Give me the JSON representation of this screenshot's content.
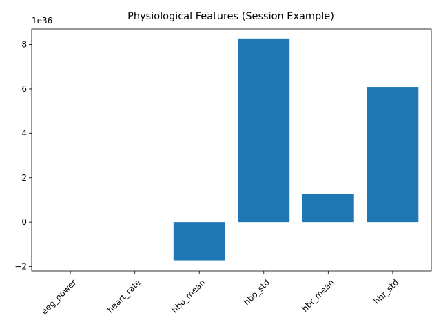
{
  "chart_data": {
    "type": "bar",
    "title": "Physiological Features (Session Example)",
    "xlabel": "",
    "ylabel": "",
    "offset_label": "1e36",
    "categories": [
      "eeg_power",
      "heart_rate",
      "hbo_mean",
      "hbo_std",
      "hbr_mean",
      "hbr_std"
    ],
    "values": [
      0.0,
      0.0,
      -1.72,
      8.27,
      1.27,
      6.09
    ],
    "value_scale": 1e+36,
    "ylim": [
      -2.2,
      8.7
    ],
    "yticks": [
      -2,
      0,
      2,
      4,
      6,
      8
    ],
    "ytick_labels": [
      "−2",
      "0",
      "2",
      "4",
      "6",
      "8"
    ],
    "xtick_rotation": 45,
    "grid": false,
    "legend": "none",
    "bar_color": "#1f77b4"
  }
}
